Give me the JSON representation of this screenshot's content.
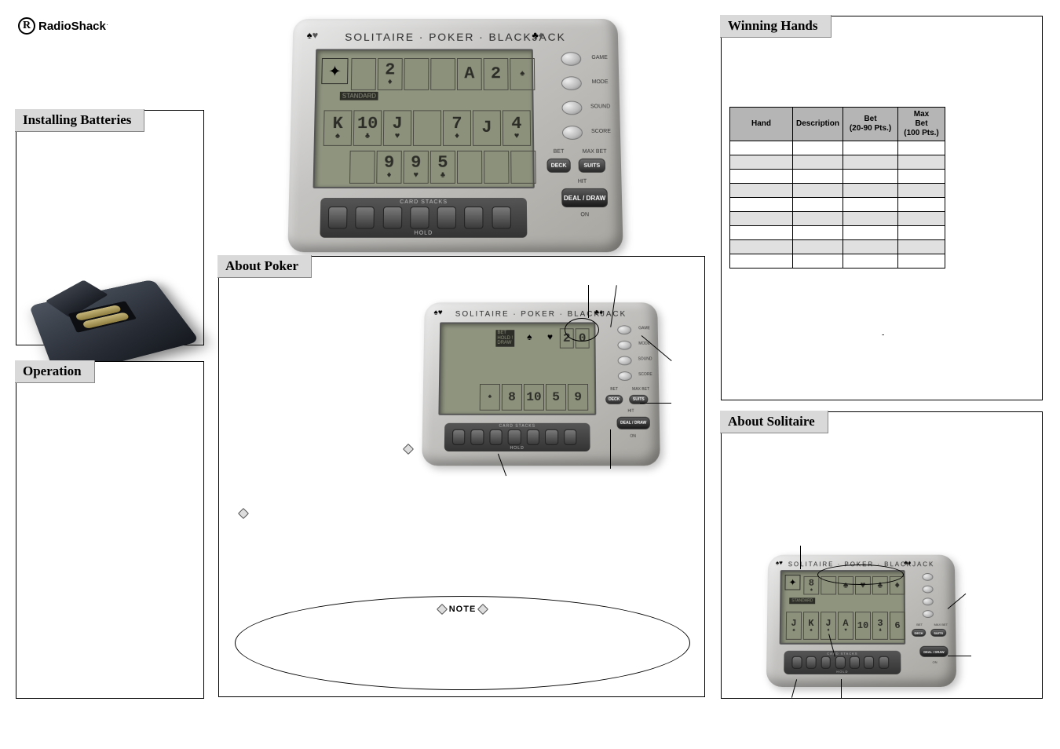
{
  "brand": {
    "initial": "R",
    "name": "RadioShack",
    "dot": "."
  },
  "sections": {
    "installing": {
      "title": "Installing Batteries"
    },
    "operation": {
      "title": "Operation"
    },
    "about_poker": {
      "title": "About Poker"
    },
    "winning_hands": {
      "title": "Winning Hands"
    },
    "about_solitaire": {
      "title": "About Solitaire"
    }
  },
  "device": {
    "title": "SOLITAIRE · POKER · BLACKJACK",
    "side_buttons": [
      "GAME",
      "MODE",
      "SOUND",
      "SCORE"
    ],
    "right_labels": {
      "bet": "BET",
      "maxbet": "MAX BET",
      "hit": "HIT",
      "on": "ON"
    },
    "right_pill_deck": "DECK",
    "right_pill_suits": "SUITS",
    "right_pill_deal": "DEAL / DRAW",
    "bottom_bar": {
      "top": "CARD STACKS",
      "bot": "HOLD"
    },
    "lcd_badge": "STANDARD",
    "hero_top_row": [
      {
        "v": "",
        "s": ""
      },
      {
        "v": "2",
        "s": "♦"
      },
      {
        "v": "",
        "s": ""
      },
      {
        "v": "",
        "s": ""
      },
      {
        "v": "A",
        "s": ""
      },
      {
        "v": "2",
        "s": ""
      },
      {
        "v": "",
        "s": "♠"
      }
    ],
    "hero_mid_row": [
      {
        "v": "K",
        "s": "♠"
      },
      {
        "v": "10",
        "s": "♣"
      },
      {
        "v": "J",
        "s": "♥"
      },
      {
        "v": "",
        "s": ""
      },
      {
        "v": "7",
        "s": "♦"
      },
      {
        "v": "J",
        "s": ""
      },
      {
        "v": "4",
        "s": "♥"
      }
    ],
    "hero_bot_row": [
      {
        "v": "",
        "s": ""
      },
      {
        "v": "9",
        "s": "♦"
      },
      {
        "v": "9",
        "s": "♥"
      },
      {
        "v": "5",
        "s": "♣"
      },
      {
        "v": "",
        "s": ""
      },
      {
        "v": "",
        "s": ""
      },
      {
        "v": "",
        "s": ""
      }
    ],
    "poker_screen": {
      "top_right": [
        {
          "v": "2",
          "s": ""
        },
        {
          "v": "0",
          "s": ""
        }
      ],
      "bot_row": [
        {
          "v": "",
          "s": "♠"
        },
        {
          "v": "8",
          "s": ""
        },
        {
          "v": "10",
          "s": ""
        },
        {
          "v": "5",
          "s": ""
        },
        {
          "v": "9",
          "s": ""
        }
      ],
      "bet_hold_draw": "BET\nHOLD !\nDRAW"
    },
    "solitaire_screen": {
      "top": [
        {
          "v": "8",
          "s": "♠"
        },
        {
          "v": "",
          "s": ""
        },
        {
          "v": "♠",
          "s": ""
        },
        {
          "v": "♥",
          "s": ""
        },
        {
          "v": "♣",
          "s": ""
        },
        {
          "v": "♦",
          "s": ""
        }
      ],
      "bot": [
        {
          "v": "J",
          "s": "♠"
        },
        {
          "v": "K",
          "s": "♠"
        },
        {
          "v": "J",
          "s": "♦"
        },
        {
          "v": "A",
          "s": "♥"
        },
        {
          "v": "10",
          "s": ""
        },
        {
          "v": "3",
          "s": "♣"
        },
        {
          "v": "6",
          "s": ""
        }
      ]
    }
  },
  "note": {
    "title": "NOTE"
  },
  "winning_hands_table": {
    "cols": [
      "Hand",
      "Description",
      "Bet\n(20-90 Pts.)",
      "Max\nBet\n(100 Pts.)"
    ],
    "rows": [
      [
        "",
        "",
        "",
        ""
      ],
      [
        "",
        "",
        "",
        ""
      ],
      [
        "",
        "",
        "",
        ""
      ],
      [
        "",
        "",
        "",
        ""
      ],
      [
        "",
        "",
        "",
        ""
      ],
      [
        "",
        "",
        "",
        ""
      ],
      [
        "",
        "",
        "",
        ""
      ],
      [
        "",
        "",
        "",
        ""
      ],
      [
        "",
        "",
        "",
        ""
      ]
    ],
    "widths": [
      "80px",
      "auto",
      "70px",
      "60px"
    ]
  },
  "body_dash": "-",
  "colors": {
    "header_bg": "#d9d9d9",
    "device_light": "#e8e8e8",
    "device_dark": "#a8a6a0",
    "lcd_bg": "#8f947f"
  }
}
